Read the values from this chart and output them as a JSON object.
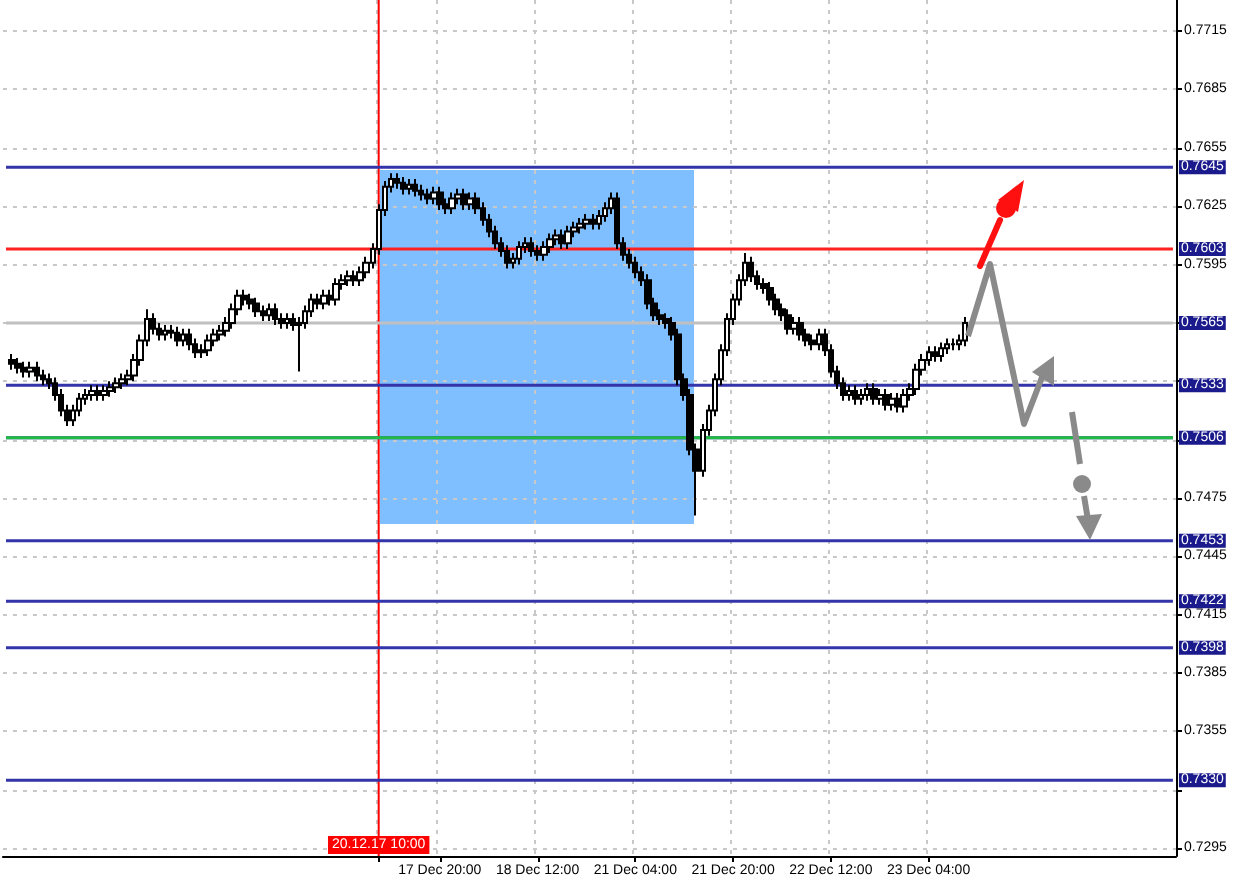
{
  "chart_data": {
    "type": "candlestick",
    "categories": [
      null,
      null,
      null,
      null,
      null,
      null,
      null,
      null,
      null,
      null,
      null,
      null,
      null,
      null,
      null,
      null,
      null,
      null,
      null,
      null,
      null,
      null,
      null,
      null,
      null,
      null,
      null,
      null,
      null,
      null,
      null,
      null,
      null,
      null,
      null,
      null,
      null,
      null,
      null,
      null,
      null,
      null,
      null,
      null,
      null,
      null,
      null,
      null,
      null,
      null,
      null,
      null,
      null,
      null,
      null,
      null,
      null,
      null,
      null,
      null,
      null,
      "20.12.17 10:00",
      null,
      null,
      null,
      null,
      null,
      null,
      null,
      null,
      null,
      "17 Dec 20:00",
      null,
      null,
      null,
      null,
      null,
      null,
      null,
      null,
      null,
      null,
      null,
      null,
      null,
      null,
      null,
      "18 Dec 12:00",
      null,
      null,
      null,
      null,
      null,
      null,
      null,
      null,
      null,
      null,
      null,
      null,
      null,
      null,
      null,
      "21 Dec 04:00",
      null,
      null,
      null,
      null,
      null,
      null,
      null,
      null,
      null,
      null,
      null,
      null,
      null,
      null,
      null,
      "21 Dec 20:00",
      null,
      null,
      null,
      null,
      null,
      null,
      null,
      null,
      null,
      null,
      null,
      null,
      null,
      null,
      null,
      "22 Dec 12:00",
      null,
      null,
      null,
      null,
      null,
      null,
      null,
      null,
      null,
      null,
      null,
      null,
      null,
      null,
      null,
      "23 Dec 04:00",
      null,
      null,
      null,
      null,
      null,
      null,
      null,
      null,
      null,
      null,
      null,
      null,
      null,
      null,
      null,
      null,
      null,
      null,
      null,
      null,
      null,
      null,
      null,
      null,
      null,
      null,
      null,
      null,
      null,
      null,
      null,
      null,
      null,
      null,
      null,
      null,
      null,
      null,
      null,
      null
    ],
    "ohlc": [
      null,
      [
        0.7546,
        0.7549,
        0.7541,
        0.7544
      ],
      [
        0.7544,
        0.7547,
        0.7539,
        0.7542
      ],
      [
        0.7542,
        0.7545,
        0.7537,
        0.754
      ],
      [
        0.754,
        0.7545,
        0.7537,
        0.7542
      ],
      [
        0.7542,
        0.7545,
        0.7535,
        0.7538
      ],
      [
        0.7538,
        0.7541,
        0.7533,
        0.7536
      ],
      [
        0.7536,
        0.7539,
        0.7531,
        0.7534
      ],
      [
        0.7534,
        0.7537,
        0.7525,
        0.7528
      ],
      [
        0.7528,
        0.7531,
        0.7517,
        0.752
      ],
      [
        0.752,
        0.7523,
        0.7512,
        0.7515
      ],
      [
        0.7515,
        0.7523,
        0.7512,
        0.752
      ],
      [
        0.752,
        0.7529,
        0.7517,
        0.7526
      ],
      [
        0.7526,
        0.7531,
        0.7523,
        0.7528
      ],
      [
        0.7528,
        0.7533,
        0.7525,
        0.753
      ],
      [
        0.753,
        0.7533,
        0.7525,
        0.7528
      ],
      [
        0.7528,
        0.7533,
        0.7525,
        0.753
      ],
      [
        0.753,
        0.7535,
        0.7527,
        0.7532
      ],
      [
        0.7532,
        0.7537,
        0.7529,
        0.7534
      ],
      [
        0.7534,
        0.7539,
        0.7531,
        0.7536
      ],
      [
        0.7536,
        0.7541,
        0.7533,
        0.7538
      ],
      [
        0.7538,
        0.7549,
        0.7535,
        0.7546
      ],
      [
        0.7546,
        0.7559,
        0.7543,
        0.7556
      ],
      [
        0.7556,
        0.7572,
        0.7553,
        0.7567
      ],
      [
        0.7567,
        0.757,
        0.7559,
        0.7562
      ],
      [
        0.7562,
        0.7565,
        0.7556,
        0.7559
      ],
      [
        0.7559,
        0.7564,
        0.7556,
        0.7561
      ],
      [
        0.7561,
        0.7564,
        0.7557,
        0.756
      ],
      [
        0.756,
        0.7563,
        0.7553,
        0.7556
      ],
      [
        0.7556,
        0.7562,
        0.7553,
        0.7559
      ],
      [
        0.7559,
        0.7562,
        0.7551,
        0.7554
      ],
      [
        0.7554,
        0.7557,
        0.7547,
        0.755
      ],
      [
        0.755,
        0.7554,
        0.7547,
        0.7551
      ],
      [
        0.7551,
        0.7559,
        0.7548,
        0.7556
      ],
      [
        0.7556,
        0.7562,
        0.7553,
        0.7559
      ],
      [
        0.7559,
        0.7564,
        0.7556,
        0.7561
      ],
      [
        0.7561,
        0.7568,
        0.7558,
        0.7565
      ],
      [
        0.7565,
        0.7575,
        0.7562,
        0.7572
      ],
      [
        0.7572,
        0.7582,
        0.7569,
        0.7579
      ],
      [
        0.7579,
        0.7582,
        0.7574,
        0.7577
      ],
      [
        0.7577,
        0.758,
        0.7572,
        0.7575
      ],
      [
        0.7575,
        0.7578,
        0.7568,
        0.7571
      ],
      [
        0.7571,
        0.7574,
        0.7566,
        0.7569
      ],
      [
        0.7569,
        0.7575,
        0.7566,
        0.7572
      ],
      [
        0.7572,
        0.7575,
        0.7564,
        0.7567
      ],
      [
        0.7567,
        0.757,
        0.7562,
        0.7565
      ],
      [
        0.7565,
        0.757,
        0.7562,
        0.7567
      ],
      [
        0.7567,
        0.757,
        0.7561,
        0.7564
      ],
      [
        0.7564,
        0.7568,
        0.754,
        0.7565
      ],
      [
        0.7565,
        0.7574,
        0.7562,
        0.7571
      ],
      [
        0.7571,
        0.758,
        0.7568,
        0.7577
      ],
      [
        0.7577,
        0.758,
        0.7572,
        0.7575
      ],
      [
        0.7575,
        0.7582,
        0.7572,
        0.7579
      ],
      [
        0.7579,
        0.7582,
        0.7574,
        0.7577
      ],
      [
        0.7577,
        0.7588,
        0.7574,
        0.7585
      ],
      [
        0.7585,
        0.759,
        0.7582,
        0.7587
      ],
      [
        0.7587,
        0.7592,
        0.7584,
        0.7589
      ],
      [
        0.7589,
        0.7592,
        0.7584,
        0.7587
      ],
      [
        0.7587,
        0.7594,
        0.7584,
        0.7591
      ],
      [
        0.7591,
        0.7599,
        0.7588,
        0.7596
      ],
      [
        0.7596,
        0.7606,
        0.7593,
        0.7603
      ],
      [
        0.7603,
        0.7626,
        0.76,
        0.7623
      ],
      [
        0.7623,
        0.7638,
        0.762,
        0.7635
      ],
      [
        0.7635,
        0.7642,
        0.7632,
        0.7639
      ],
      [
        0.7639,
        0.7642,
        0.7634,
        0.7637
      ],
      [
        0.7637,
        0.764,
        0.7631,
        0.7634
      ],
      [
        0.7634,
        0.7639,
        0.7631,
        0.7636
      ],
      [
        0.7636,
        0.7639,
        0.763,
        0.7633
      ],
      [
        0.7633,
        0.7636,
        0.7628,
        0.7631
      ],
      [
        0.7631,
        0.7634,
        0.7626,
        0.7629
      ],
      [
        0.7629,
        0.7635,
        0.7626,
        0.7632
      ],
      [
        0.7632,
        0.7635,
        0.7623,
        0.7626
      ],
      [
        0.7626,
        0.7629,
        0.7621,
        0.7624
      ],
      [
        0.7624,
        0.7632,
        0.7621,
        0.7629
      ],
      [
        0.7629,
        0.7634,
        0.7626,
        0.7631
      ],
      [
        0.7631,
        0.7634,
        0.7623,
        0.7626
      ],
      [
        0.7626,
        0.7632,
        0.7623,
        0.7629
      ],
      [
        0.7629,
        0.7632,
        0.7621,
        0.7624
      ],
      [
        0.7624,
        0.7627,
        0.7615,
        0.7618
      ],
      [
        0.7618,
        0.7621,
        0.7609,
        0.7612
      ],
      [
        0.7612,
        0.7615,
        0.7603,
        0.7606
      ],
      [
        0.7606,
        0.7609,
        0.7599,
        0.7602
      ],
      [
        0.7602,
        0.7605,
        0.7593,
        0.7596
      ],
      [
        0.7596,
        0.7601,
        0.7593,
        0.7598
      ],
      [
        0.7598,
        0.7607,
        0.7595,
        0.7604
      ],
      [
        0.7604,
        0.7609,
        0.7601,
        0.7606
      ],
      [
        0.7606,
        0.7609,
        0.7599,
        0.7602
      ],
      [
        0.7602,
        0.7605,
        0.7597,
        0.76
      ],
      [
        0.76,
        0.7607,
        0.7597,
        0.7604
      ],
      [
        0.7604,
        0.7611,
        0.7601,
        0.7608
      ],
      [
        0.7608,
        0.7613,
        0.7605,
        0.761
      ],
      [
        0.761,
        0.7613,
        0.7603,
        0.7606
      ],
      [
        0.7606,
        0.7615,
        0.7603,
        0.7612
      ],
      [
        0.7612,
        0.7617,
        0.7609,
        0.7614
      ],
      [
        0.7614,
        0.7619,
        0.7611,
        0.7616
      ],
      [
        0.7616,
        0.7621,
        0.7613,
        0.7618
      ],
      [
        0.7618,
        0.7621,
        0.7613,
        0.7616
      ],
      [
        0.7616,
        0.7623,
        0.7613,
        0.762
      ],
      [
        0.762,
        0.7627,
        0.7617,
        0.7624
      ],
      [
        0.7624,
        0.7632,
        0.7621,
        0.7629
      ],
      [
        0.7629,
        0.7632,
        0.7603,
        0.7606
      ],
      [
        0.7606,
        0.7609,
        0.7597,
        0.76
      ],
      [
        0.76,
        0.7603,
        0.7593,
        0.7596
      ],
      [
        0.7596,
        0.7599,
        0.7588,
        0.7591
      ],
      [
        0.7591,
        0.7594,
        0.7584,
        0.7587
      ],
      [
        0.7587,
        0.759,
        0.7572,
        0.7575
      ],
      [
        0.7575,
        0.7578,
        0.7566,
        0.7569
      ],
      [
        0.7569,
        0.7572,
        0.7564,
        0.7567
      ],
      [
        0.7567,
        0.757,
        0.7562,
        0.7565
      ],
      [
        0.7565,
        0.7568,
        0.7556,
        0.7559
      ],
      [
        0.7559,
        0.7562,
        0.7533,
        0.7536
      ],
      [
        0.7536,
        0.7539,
        0.7525,
        0.7528
      ],
      [
        0.7528,
        0.7531,
        0.7497,
        0.75
      ],
      [
        0.75,
        0.7503,
        0.7466,
        0.7489
      ],
      [
        0.7489,
        0.7513,
        0.7486,
        0.751
      ],
      [
        0.751,
        0.7523,
        0.7507,
        0.752
      ],
      [
        0.752,
        0.7539,
        0.7517,
        0.7536
      ],
      [
        0.7536,
        0.7554,
        0.7533,
        0.7551
      ],
      [
        0.7551,
        0.757,
        0.7548,
        0.7567
      ],
      [
        0.7567,
        0.758,
        0.7564,
        0.7577
      ],
      [
        0.7577,
        0.759,
        0.7574,
        0.7587
      ],
      [
        0.7587,
        0.7601,
        0.7584,
        0.7596
      ],
      [
        0.7596,
        0.7599,
        0.7586,
        0.7589
      ],
      [
        0.7589,
        0.7592,
        0.7582,
        0.7585
      ],
      [
        0.7585,
        0.7588,
        0.758,
        0.7583
      ],
      [
        0.7583,
        0.7586,
        0.7574,
        0.7577
      ],
      [
        0.7577,
        0.758,
        0.7569,
        0.7572
      ],
      [
        0.7572,
        0.7575,
        0.7566,
        0.7569
      ],
      [
        0.7569,
        0.7572,
        0.7559,
        0.7562
      ],
      [
        0.7562,
        0.7568,
        0.7559,
        0.7565
      ],
      [
        0.7565,
        0.7568,
        0.7556,
        0.7559
      ],
      [
        0.7559,
        0.7562,
        0.7553,
        0.7556
      ],
      [
        0.7556,
        0.7559,
        0.7551,
        0.7554
      ],
      [
        0.7554,
        0.7562,
        0.7551,
        0.7559
      ],
      [
        0.7559,
        0.7562,
        0.7548,
        0.7551
      ],
      [
        0.7551,
        0.7554,
        0.7537,
        0.754
      ],
      [
        0.754,
        0.7543,
        0.7531,
        0.7534
      ],
      [
        0.7534,
        0.7537,
        0.7525,
        0.7528
      ],
      [
        0.7528,
        0.7533,
        0.7525,
        0.753
      ],
      [
        0.753,
        0.7533,
        0.7523,
        0.7526
      ],
      [
        0.7526,
        0.7531,
        0.7523,
        0.7528
      ],
      [
        0.7528,
        0.7534,
        0.7525,
        0.7531
      ],
      [
        0.7531,
        0.7534,
        0.7523,
        0.7526
      ],
      [
        0.7526,
        0.7531,
        0.7523,
        0.7528
      ],
      [
        0.7528,
        0.7531,
        0.752,
        0.7523
      ],
      [
        0.7523,
        0.7529,
        0.752,
        0.7526
      ],
      [
        0.7526,
        0.7529,
        0.7519,
        0.7522
      ],
      [
        0.7522,
        0.7531,
        0.7519,
        0.7528
      ],
      [
        0.7528,
        0.7534,
        0.7525,
        0.7531
      ],
      [
        0.7531,
        0.7544,
        0.7528,
        0.7541
      ],
      [
        0.7541,
        0.7549,
        0.7538,
        0.7546
      ],
      [
        0.7546,
        0.7553,
        0.7543,
        0.755
      ],
      [
        0.755,
        0.7553,
        0.7545,
        0.7548
      ],
      [
        0.7548,
        0.7555,
        0.7545,
        0.7552
      ],
      [
        0.7552,
        0.7557,
        0.7549,
        0.7554
      ],
      [
        0.7554,
        0.7557,
        0.7551,
        0.7554
      ],
      [
        0.7554,
        0.7559,
        0.7551,
        0.7556
      ],
      [
        0.7556,
        0.7568,
        0.7553,
        0.7565
      ],
      null,
      null,
      null,
      null,
      null,
      null,
      null,
      null,
      null,
      null,
      null,
      null,
      null,
      null,
      null,
      null,
      null,
      null,
      null,
      null,
      null,
      null,
      null,
      null,
      null,
      null,
      null,
      null,
      null,
      null,
      null,
      null,
      null,
      null
    ],
    "ylim": [
      0.7291,
      0.7731
    ],
    "yticks": [
      0.7715,
      0.7685,
      0.7655,
      0.7625,
      0.7595,
      {
        "value": 0.7565,
        "label": null
      },
      {
        "value": 0.7535,
        "label": null
      },
      {
        "value": 0.7505,
        "label": null
      },
      0.7475,
      0.7445,
      0.7415,
      0.7385,
      0.7355,
      {
        "value": 0.7325,
        "label": null
      },
      0.7295
    ],
    "grid": true,
    "ref_lines": [
      {
        "axis": "x",
        "value": "20.12.17 10:00",
        "color": "#ff0000"
      },
      {
        "axis": "y",
        "value": 0.7645,
        "label": "0.7645",
        "color": "#3333aa"
      },
      {
        "axis": "y",
        "value": 0.7565,
        "label": "0.7565",
        "color": "#c0c0c0"
      },
      {
        "axis": "y",
        "value": 0.7533,
        "label": "0.7533",
        "color": "#3333aa"
      },
      {
        "axis": "y",
        "value": 0.7506,
        "label": "0.7506",
        "color": "#3333aa"
      },
      {
        "axis": "y",
        "value": 0.7453,
        "label": "0.7453",
        "color": "#3333aa"
      },
      {
        "axis": "y",
        "value": 0.7422,
        "label": "0.7422",
        "color": "#3333aa"
      },
      {
        "axis": "y",
        "value": 0.7398,
        "label": "0.7398",
        "color": "#3333aa"
      },
      {
        "axis": "y",
        "value": 0.733,
        "label": "0.7330",
        "color": "#3333aa"
      },
      {
        "axis": "y",
        "value": 0.7506,
        "color": "#22bb44"
      },
      {
        "axis": "y",
        "value": 0.7603,
        "label": "0.7603",
        "color": "#ff2020"
      }
    ]
  }
}
